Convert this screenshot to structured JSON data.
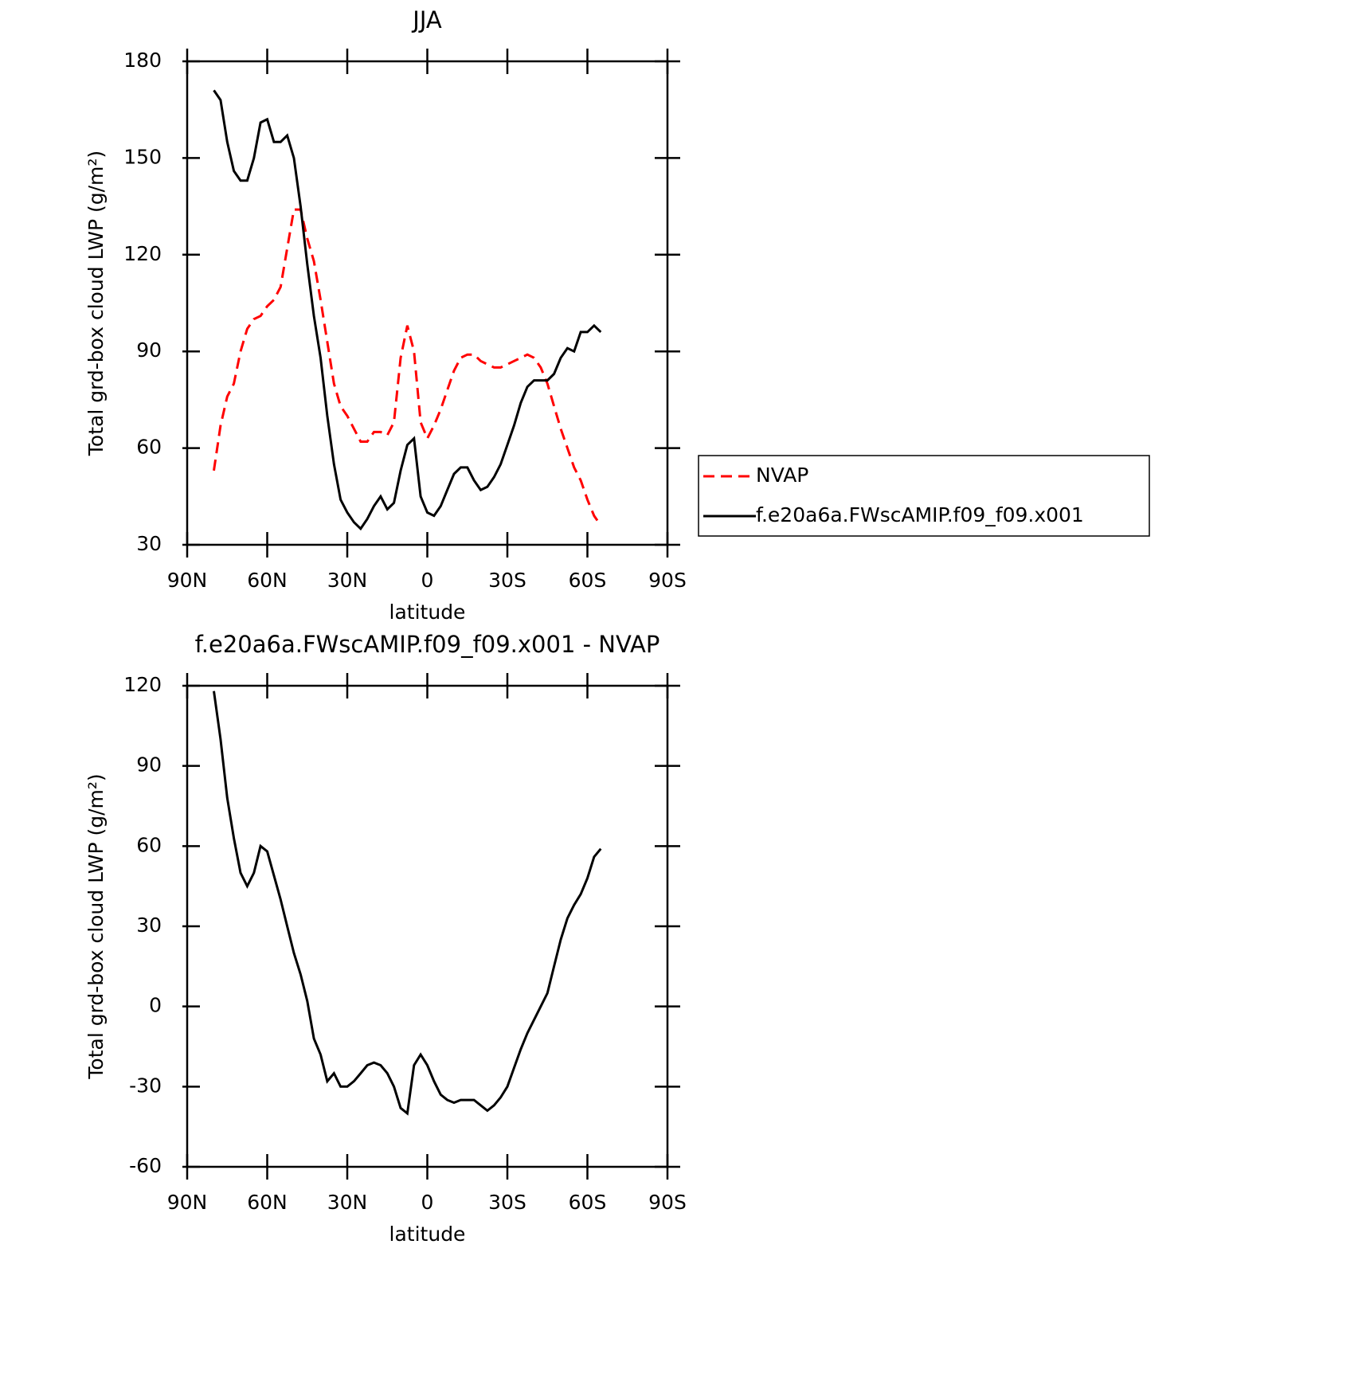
{
  "chart_data": [
    {
      "type": "line",
      "title": "JJA",
      "x_label": "latitude",
      "y_label": "Total grd-box cloud LWP (g/m²)",
      "x": [
        80,
        77.5,
        75,
        72.5,
        70,
        67.5,
        65,
        62.5,
        60,
        57.5,
        55,
        52.5,
        50,
        47.5,
        45,
        42.5,
        40,
        37.5,
        35,
        32.5,
        30,
        27.5,
        25,
        22.5,
        20,
        17.5,
        15,
        12.5,
        10,
        7.5,
        5,
        2.5,
        0,
        -2.5,
        -5,
        -7.5,
        -10,
        -12.5,
        -15,
        -17.5,
        -20,
        -22.5,
        -25,
        -27.5,
        -30,
        -32.5,
        -35,
        -37.5,
        -40,
        -42.5,
        -45,
        -47.5,
        -50,
        -52.5,
        -55,
        -57.5,
        -60,
        -62.5,
        -65
      ],
      "series": [
        {
          "name": "NVAP",
          "color": "#ff0000",
          "line_style": "dashed",
          "values": [
            53,
            67,
            76,
            80,
            90,
            97,
            100,
            101,
            104,
            106,
            110,
            122,
            134,
            134,
            125,
            118,
            106,
            93,
            80,
            73,
            70,
            66,
            62,
            62,
            65,
            65,
            64,
            68,
            88,
            98,
            90,
            68,
            63,
            67,
            72,
            78,
            84,
            88,
            89,
            89,
            87,
            86,
            85,
            85,
            86,
            87,
            88,
            89,
            88,
            85,
            80,
            73,
            66,
            60,
            54,
            50,
            44,
            39,
            36
          ]
        },
        {
          "name": "f.e20a6a.FWscAMIP.f09_f09.x001",
          "color": "#000000",
          "line_style": "solid",
          "values": [
            171,
            168,
            155,
            146,
            143,
            143,
            150,
            161,
            162,
            155,
            155,
            157,
            150,
            135,
            117,
            101,
            88,
            70,
            55,
            44,
            40,
            37,
            35,
            38,
            42,
            45,
            41,
            43,
            53,
            61,
            63,
            45,
            40,
            39,
            42,
            47,
            52,
            54,
            54,
            50,
            47,
            48,
            51,
            55,
            61,
            67,
            74,
            79,
            81,
            81,
            81,
            83,
            88,
            91,
            90,
            96,
            96,
            98,
            96
          ]
        }
      ],
      "xlim": [
        90,
        -90
      ],
      "xticks": [
        {
          "value": 90,
          "label": "90N"
        },
        {
          "value": 60,
          "label": "60N"
        },
        {
          "value": 30,
          "label": "30N"
        },
        0,
        {
          "value": -30,
          "label": "30S"
        },
        {
          "value": -60,
          "label": "60S"
        },
        {
          "value": -90,
          "label": "90S"
        }
      ],
      "ylim": [
        30,
        180
      ],
      "yticks": [
        30,
        60,
        90,
        120,
        150,
        180
      ],
      "grid": false,
      "legend": "outside-right"
    },
    {
      "type": "line",
      "title": "f.e20a6a.FWscAMIP.f09_f09.x001 - NVAP",
      "x_label": "latitude",
      "y_label": "Total grd-box cloud LWP (g/m²)",
      "x": [
        80,
        77.5,
        75,
        72.5,
        70,
        67.5,
        65,
        62.5,
        60,
        57.5,
        55,
        52.5,
        50,
        47.5,
        45,
        42.5,
        40,
        37.5,
        35,
        32.5,
        30,
        27.5,
        25,
        22.5,
        20,
        17.5,
        15,
        12.5,
        10,
        7.5,
        5,
        2.5,
        0,
        -2.5,
        -5,
        -7.5,
        -10,
        -12.5,
        -15,
        -17.5,
        -20,
        -22.5,
        -25,
        -27.5,
        -30,
        -32.5,
        -35,
        -37.5,
        -40,
        -42.5,
        -45,
        -47.5,
        -50,
        -52.5,
        -55,
        -57.5,
        -60,
        -62.5,
        -65
      ],
      "series": [
        {
          "color": "#000000",
          "line_style": "solid",
          "values": [
            118,
            100,
            78,
            63,
            50,
            45,
            50,
            60,
            58,
            49,
            40,
            30,
            20,
            12,
            2,
            -12,
            -18,
            -28,
            -25,
            -30,
            -30,
            -28,
            -25,
            -22,
            -21,
            -22,
            -25,
            -30,
            -38,
            -40,
            -22,
            -18,
            -22,
            -28,
            -33,
            -35,
            -36,
            -35,
            -35,
            -35,
            -37,
            -39,
            -37,
            -34,
            -30,
            -23,
            -16,
            -10,
            -5,
            0,
            5,
            15,
            25,
            33,
            38,
            42,
            48,
            56,
            59
          ]
        }
      ],
      "xlim": [
        90,
        -90
      ],
      "xticks": [
        {
          "value": 90,
          "label": "90N"
        },
        {
          "value": 60,
          "label": "60N"
        },
        {
          "value": 30,
          "label": "30N"
        },
        0,
        {
          "value": -30,
          "label": "30S"
        },
        {
          "value": -60,
          "label": "60S"
        },
        {
          "value": -90,
          "label": "90S"
        }
      ],
      "ylim": [
        -60,
        120
      ],
      "yticks": [
        -60,
        -30,
        0,
        30,
        60,
        90,
        120
      ],
      "grid": false
    }
  ]
}
